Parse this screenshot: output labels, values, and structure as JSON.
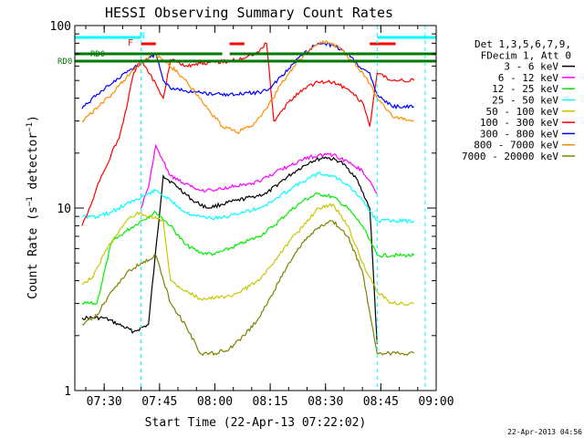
{
  "chart_data": {
    "type": "line",
    "title": "HESSI Observing Summary Count Rates",
    "xlabel": "Start Time (22-Apr-13 07:22:02)",
    "ylabel": "Count Rate (s⁻¹ detector⁻¹)",
    "ylabel_parts": {
      "main": "Count Rate (s",
      "exp1": "−1",
      "mid": " detector",
      "exp2": "−1",
      "end": ")"
    },
    "x_range": [
      "07:22:02",
      "09:00:00"
    ],
    "y_scale": "log",
    "ylim": [
      1,
      100
    ],
    "x_ticks": [
      "07:30",
      "07:45",
      "08:00",
      "08:15",
      "08:30",
      "08:45",
      "09:00"
    ],
    "y_ticks": [
      "1",
      "10",
      "100"
    ],
    "legend_header": [
      "Det 1,3,5,6,7,9,",
      "FDecim 1, Att 0"
    ],
    "legend_position": "right",
    "footer_timestamp": "22-Apr-2013 04:56",
    "flag_labels": {
      "rd0_upper": "RD0",
      "rd0_left": "RD0",
      "f": "F",
      "n": "N"
    },
    "flag_colors": {
      "rd0": "#007700",
      "f": "#ff0000",
      "n": "#00ffff"
    },
    "series": [
      {
        "name": "3 - 6 keV",
        "color": "#000000",
        "x": [
          "07:24",
          "07:30",
          "07:34",
          "07:38",
          "07:42",
          "07:46",
          "07:50",
          "07:54",
          "07:58",
          "08:02",
          "08:06",
          "08:10",
          "08:14",
          "08:18",
          "08:22",
          "08:26",
          "08:30",
          "08:34",
          "08:38",
          "08:42",
          "08:44"
        ],
        "y": [
          2.5,
          2.5,
          2.3,
          2.1,
          2.3,
          15,
          13,
          11,
          10,
          10.5,
          11,
          11.5,
          12,
          14,
          16,
          18,
          19,
          18,
          15,
          10,
          1.8
        ]
      },
      {
        "name": "6 - 12 keV",
        "color": "#ff00ff",
        "x": [
          "07:40",
          "07:42",
          "07:44",
          "07:46",
          "07:48",
          "07:52",
          "07:56",
          "08:00",
          "08:04",
          "08:08",
          "08:12",
          "08:16",
          "08:20",
          "08:24",
          "08:28",
          "08:32",
          "08:36",
          "08:40",
          "08:44"
        ],
        "y": [
          10,
          13,
          22,
          18,
          15,
          13.5,
          12.5,
          12.5,
          13,
          13.5,
          14,
          15.5,
          17,
          18.5,
          19.5,
          19.5,
          18,
          16,
          12
        ]
      },
      {
        "name": "12 - 25 keV",
        "color": "#00ee00",
        "x": [
          "07:24",
          "07:28",
          "07:32",
          "07:36",
          "07:40",
          "07:44",
          "07:48",
          "07:52",
          "07:56",
          "08:00",
          "08:04",
          "08:08",
          "08:12",
          "08:16",
          "08:20",
          "08:24",
          "08:28",
          "08:32",
          "08:36",
          "08:40",
          "08:44",
          "08:48",
          "08:54"
        ],
        "y": [
          3,
          3,
          6.5,
          7.5,
          8.5,
          9.5,
          8,
          6.3,
          5.7,
          5.6,
          6,
          6.5,
          7,
          8,
          9.5,
          11,
          12,
          11.5,
          10,
          8,
          5.5,
          5.5,
          5.5
        ]
      },
      {
        "name": "25 - 50 keV",
        "color": "#00ffff",
        "x": [
          "07:24",
          "07:28",
          "07:32",
          "07:36",
          "07:40",
          "07:44",
          "07:48",
          "07:52",
          "07:56",
          "08:00",
          "08:04",
          "08:08",
          "08:12",
          "08:16",
          "08:20",
          "08:24",
          "08:28",
          "08:32",
          "08:36",
          "08:40",
          "08:44",
          "08:48",
          "08:54"
        ],
        "y": [
          9,
          9,
          9.5,
          10.5,
          11.5,
          12.5,
          11,
          9.5,
          9,
          8.8,
          9,
          9.5,
          10,
          11,
          12.5,
          14,
          15.5,
          15,
          13.5,
          11,
          8.5,
          8.5,
          8.5
        ]
      },
      {
        "name": "50 - 100 keV",
        "color": "#c8c800",
        "x": [
          "07:24",
          "07:27",
          "07:30",
          "07:33",
          "07:36",
          "07:39",
          "07:42",
          "07:46",
          "07:48",
          "07:52",
          "07:56",
          "08:00",
          "08:04",
          "08:08",
          "08:12",
          "08:16",
          "08:20",
          "08:24",
          "08:28",
          "08:32",
          "08:36",
          "08:40",
          "08:44",
          "08:48",
          "08:54"
        ],
        "y": [
          3.8,
          4.2,
          5.6,
          7,
          8.5,
          9.5,
          9,
          8.5,
          4,
          3.5,
          3.2,
          3.2,
          3.3,
          3.6,
          4,
          5,
          6.5,
          8,
          10,
          10.5,
          8,
          5,
          3.5,
          3,
          3
        ]
      },
      {
        "name": "100 - 300 keV",
        "color": "#ff0000",
        "x": [
          "07:24",
          "07:26",
          "07:28",
          "07:30",
          "07:32",
          "07:34",
          "07:36",
          "07:38",
          "07:40",
          "07:42",
          "07:44",
          "07:46",
          "07:48",
          "07:52",
          "07:56",
          "08:00",
          "08:04",
          "08:08",
          "08:12",
          "08:14",
          "08:16",
          "08:20",
          "08:24",
          "08:28",
          "08:32",
          "08:36",
          "08:40",
          "08:42",
          "08:44",
          "08:48",
          "08:54"
        ],
        "y": [
          8,
          10,
          13,
          16,
          20,
          24,
          35,
          55,
          65,
          55,
          48,
          40,
          65,
          60,
          62,
          63,
          64,
          66,
          72,
          80,
          30,
          38,
          45,
          49,
          49,
          45,
          38,
          28,
          55,
          50,
          50
        ]
      },
      {
        "name": "300 - 800 keV",
        "color": "#0000ff",
        "x": [
          "07:24",
          "07:28",
          "07:32",
          "07:36",
          "07:40",
          "07:44",
          "07:46",
          "07:48",
          "07:52",
          "07:56",
          "08:00",
          "08:04",
          "08:08",
          "08:12",
          "08:14",
          "08:16",
          "08:20",
          "08:24",
          "08:28",
          "08:32",
          "08:36",
          "08:40",
          "08:42",
          "08:44",
          "08:48",
          "08:54"
        ],
        "y": [
          35,
          42,
          48,
          55,
          62,
          70,
          50,
          45,
          44,
          43,
          42,
          42,
          42.5,
          43,
          44,
          48,
          58,
          70,
          80,
          78,
          70,
          58,
          55,
          42,
          36,
          36
        ]
      },
      {
        "name": "800 - 7000 keV",
        "color": "#ff8c00",
        "x": [
          "07:24",
          "07:28",
          "07:32",
          "07:36",
          "07:40",
          "07:43",
          "07:46",
          "07:50",
          "07:54",
          "07:58",
          "08:02",
          "08:06",
          "08:10",
          "08:14",
          "08:18",
          "08:22",
          "08:26",
          "08:30",
          "08:34",
          "08:38",
          "08:42",
          "08:44",
          "08:48",
          "08:54"
        ],
        "y": [
          30,
          35,
          42,
          52,
          62,
          70,
          65,
          55,
          45,
          35,
          28,
          26,
          28,
          35,
          48,
          62,
          75,
          82,
          75,
          62,
          48,
          40,
          32,
          30
        ]
      },
      {
        "name": "7000 - 20000 keV",
        "color": "#808000",
        "x": [
          "07:24",
          "07:28",
          "07:32",
          "07:36",
          "07:40",
          "07:44",
          "07:48",
          "07:52",
          "07:56",
          "08:00",
          "08:04",
          "08:08",
          "08:12",
          "08:16",
          "08:20",
          "08:24",
          "08:28",
          "08:32",
          "08:36",
          "08:40",
          "08:44",
          "08:48",
          "08:54"
        ],
        "y": [
          2.3,
          2.6,
          3.5,
          4.4,
          5,
          5.5,
          3,
          2.3,
          1.6,
          1.6,
          1.7,
          2,
          2.5,
          3.5,
          5,
          6.5,
          7.8,
          8.5,
          7,
          4.5,
          1.6,
          1.6,
          1.6
        ]
      }
    ]
  }
}
